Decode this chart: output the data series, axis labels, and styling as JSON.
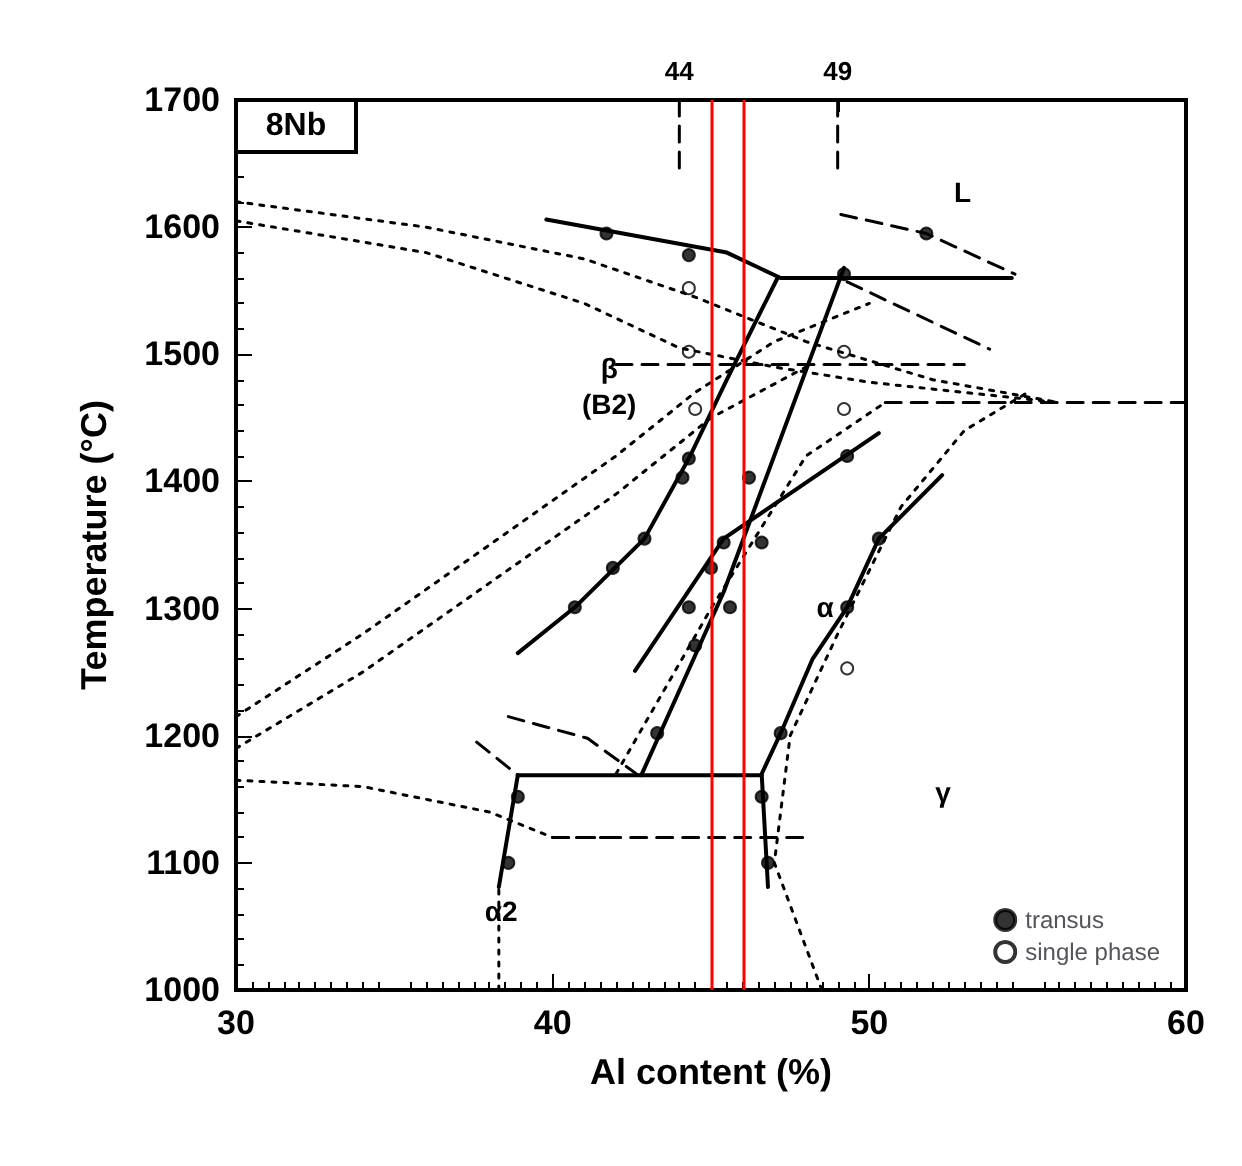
{
  "chart_data": {
    "type": "scatter",
    "xlabel": "Al content (%)",
    "ylabel": "Temperature (°C)",
    "xlim": [
      30,
      60
    ],
    "xticks": [
      30,
      40,
      50,
      60
    ],
    "ylim": [
      1000,
      1700
    ],
    "yticks": [
      1000,
      1100,
      1200,
      1300,
      1400,
      1500,
      1600,
      1700
    ],
    "x2lim": [
      30,
      60
    ],
    "x2ticks": [
      44,
      49
    ],
    "grid": false,
    "legend": "bottom right",
    "annotations": [
      "8Nb",
      "L",
      "β\n(B2)",
      "α",
      "γ",
      "α2"
    ],
    "ref_lines": [
      {
        "axis": "x",
        "value": 45,
        "label": null,
        "color": "#ff0000"
      },
      {
        "axis": "x",
        "value": 46,
        "label": null,
        "color": "#ff0000"
      }
    ],
    "series": [
      {
        "name": "transus",
        "marker": "circle",
        "color": "#000000",
        "x": [
          41.7,
          44.3,
          44.3,
          44.1,
          42.9,
          41.9,
          40.7,
          44.3,
          44.5,
          43.3,
          38.9,
          38.6,
          46.2,
          45.4,
          45.0,
          46.6,
          45.6,
          49.3,
          49.2,
          51.8,
          50.3,
          49.3,
          47.2,
          46.6,
          46.8
        ],
        "values": [
          1595,
          1578,
          1418,
          1403,
          1355,
          1332,
          1301,
          1301,
          1271,
          1202,
          1152,
          1100,
          1403,
          1352,
          1332,
          1352,
          1301,
          1420,
          1563,
          1595,
          1355,
          1301,
          1202,
          1152,
          1100
        ]
      },
      {
        "name": "single phase",
        "marker": "circle",
        "color": "#ffffff",
        "x": [
          44.3,
          44.3,
          44.5,
          49.2,
          49.2,
          49.3
        ],
        "values": [
          1552,
          1502,
          1457,
          1502,
          1457,
          1253
        ]
      },
      {
        "type": "line",
        "marker": "none",
        "line_style": "solid",
        "color": "#000000",
        "x": [
          39.8,
          45.5,
          47.2,
          54.5
        ],
        "values": [
          1606,
          1580,
          1560,
          1560
        ]
      },
      {
        "type": "line",
        "marker": "none",
        "line_style": "solid",
        "color": "#000000",
        "x": [
          38.9,
          40.7,
          42.9,
          44.3,
          45.5,
          47.1
        ],
        "values": [
          1265,
          1301,
          1355,
          1418,
          1480,
          1560
        ]
      },
      {
        "type": "line",
        "marker": "none",
        "line_style": "solid",
        "color": "#000000",
        "x": [
          42.8,
          45.4,
          49.2
        ],
        "values": [
          1169,
          1313,
          1568
        ]
      },
      {
        "type": "line",
        "marker": "none",
        "line_style": "solid",
        "color": "#000000",
        "x": [
          42.6,
          45.4,
          50.3
        ],
        "values": [
          1251,
          1355,
          1438
        ]
      },
      {
        "type": "line",
        "marker": "none",
        "line_style": "solid",
        "color": "#000000",
        "x": [
          46.8,
          46.6,
          47.2,
          48.2,
          49.3,
          50.3,
          52.3
        ],
        "values": [
          1081,
          1170,
          1202,
          1260,
          1301,
          1355,
          1405
        ]
      },
      {
        "type": "line",
        "marker": "none",
        "line_style": "solid",
        "color": "#000000",
        "x": [
          38.9,
          46.6
        ],
        "values": [
          1169,
          1169
        ]
      },
      {
        "type": "line",
        "marker": "none",
        "line_style": "solid",
        "color": "#000000",
        "x": [
          38.3,
          38.9
        ],
        "values": [
          1081,
          1169
        ]
      },
      {
        "type": "line",
        "marker": "none",
        "line_style": "dashed",
        "color": "#000000",
        "x": [
          37.6,
          38.9
        ],
        "values": [
          1195,
          1169
        ]
      },
      {
        "type": "line",
        "marker": "none",
        "line_style": "dashed",
        "color": "#000000",
        "x": [
          38.6,
          41.1,
          42.7
        ],
        "values": [
          1215,
          1198,
          1169
        ]
      },
      {
        "type": "line",
        "marker": "none",
        "line_style": "dashed",
        "color": "#000000",
        "x": [
          49.1,
          51.8,
          54.6
        ],
        "values": [
          1610,
          1595,
          1563
        ]
      },
      {
        "type": "line",
        "marker": "none",
        "line_style": "dashed",
        "color": "#000000",
        "x": [
          49.3,
          53.8
        ],
        "values": [
          1557,
          1504
        ]
      },
      {
        "type": "line",
        "marker": "none",
        "line_style": "dashed",
        "color": "#000000",
        "x": [
          44,
          44
        ],
        "values": [
          1700,
          1640
        ]
      },
      {
        "type": "line",
        "marker": "none",
        "line_style": "dashed",
        "color": "#000000",
        "x": [
          49,
          49
        ],
        "values": [
          1700,
          1640
        ]
      },
      {
        "type": "line",
        "marker": "none",
        "line_style": "dotted",
        "color": "#000000",
        "x": [
          30,
          36,
          41,
          44.5,
          48,
          52,
          56
        ],
        "values": [
          1620,
          1600,
          1575,
          1545,
          1510,
          1480,
          1462
        ]
      },
      {
        "type": "line",
        "marker": "none",
        "line_style": "dotted",
        "color": "#000000",
        "x": [
          30,
          36,
          41,
          44,
          47,
          50,
          56
        ],
        "values": [
          1605,
          1580,
          1540,
          1505,
          1490,
          1478,
          1462
        ]
      },
      {
        "type": "line",
        "marker": "none",
        "line_style": "dotted",
        "color": "#000000",
        "x": [
          30,
          34,
          38,
          42,
          44.5,
          47,
          50
        ],
        "values": [
          1215,
          1280,
          1350,
          1420,
          1470,
          1510,
          1540
        ]
      },
      {
        "type": "line",
        "marker": "none",
        "line_style": "dotted",
        "color": "#000000",
        "x": [
          30,
          34,
          38,
          42,
          45,
          48
        ],
        "values": [
          1190,
          1250,
          1320,
          1390,
          1450,
          1490
        ]
      },
      {
        "type": "line",
        "marker": "none",
        "line_style": "dotted",
        "color": "#000000",
        "x": [
          30,
          34,
          38,
          40,
          42
        ],
        "values": [
          1165,
          1160,
          1140,
          1120,
          1120
        ]
      },
      {
        "type": "line",
        "marker": "none",
        "line_style": "dotted",
        "color": "#000000",
        "x": [
          38.3,
          38.3
        ],
        "values": [
          1000,
          1081
        ]
      },
      {
        "type": "line",
        "marker": "none",
        "line_style": "dashed",
        "color": "#000000",
        "x": [
          40,
          48
        ],
        "values": [
          1120,
          1120
        ]
      },
      {
        "type": "line",
        "marker": "none",
        "line_style": "dashed",
        "color": "#000000",
        "x": [
          42,
          53
        ],
        "values": [
          1492,
          1492
        ]
      },
      {
        "type": "line",
        "marker": "none",
        "line_style": "dashed",
        "color": "#000000",
        "x": [
          50.5,
          60
        ],
        "values": [
          1462,
          1462
        ]
      },
      {
        "type": "line",
        "marker": "none",
        "line_style": "dotted",
        "color": "#000000",
        "x": [
          48.5,
          47,
          47.5,
          49,
          51,
          53,
          55
        ],
        "values": [
          1000,
          1100,
          1200,
          1280,
          1380,
          1440,
          1470
        ]
      },
      {
        "type": "line",
        "marker": "none",
        "line_style": "dotted",
        "color": "#000000",
        "x": [
          42,
          45,
          48,
          50.5
        ],
        "values": [
          1170,
          1300,
          1420,
          1462
        ]
      }
    ]
  }
}
